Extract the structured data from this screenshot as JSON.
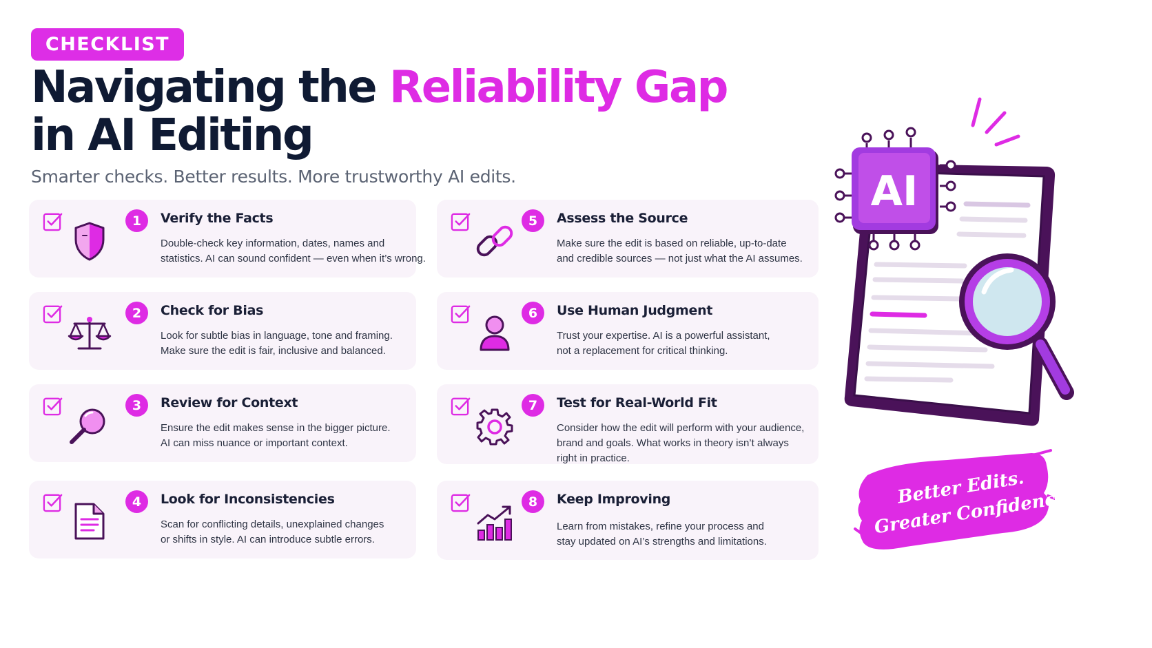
{
  "header": {
    "badge": "CHECKLIST",
    "title_part1": "Navigating the ",
    "title_highlight": "Reliability Gap",
    "title_line2": "in AI Editing",
    "subtitle": "Smarter checks. Better results. More trustworthy AI edits."
  },
  "items": [
    {
      "number": "1",
      "title": "Verify the Facts",
      "icon": "shield-icon",
      "desc_line1": "Double-check key information, dates, names and",
      "desc_line2": "statistics. AI can sound confident — even when it’s wrong.",
      "desc_line3": ""
    },
    {
      "number": "2",
      "title": "Check for Bias",
      "icon": "scale-icon",
      "desc_line1": "Look for subtle bias in language, tone and framing.",
      "desc_line2": "Make sure the edit is fair, inclusive and balanced.",
      "desc_line3": ""
    },
    {
      "number": "3",
      "title": "Review for Context",
      "icon": "magnifier-icon",
      "desc_line1": "Ensure the edit makes sense in the bigger picture.",
      "desc_line2": "AI can miss nuance or important context.",
      "desc_line3": ""
    },
    {
      "number": "4",
      "title": "Look for Inconsistencies",
      "icon": "document-icon",
      "desc_line1": "Scan for conflicting details, unexplained changes",
      "desc_line2": "or shifts in style. AI can introduce subtle errors.",
      "desc_line3": ""
    },
    {
      "number": "5",
      "title": "Assess the Source",
      "icon": "link-icon",
      "desc_line1": "Make sure the edit is based on reliable, up-to-date",
      "desc_line2": "and credible sources — not just what the AI assumes.",
      "desc_line3": ""
    },
    {
      "number": "6",
      "title": "Use Human Judgment",
      "icon": "person-icon",
      "desc_line1": "Trust your expertise. AI is a powerful assistant,",
      "desc_line2": "not a replacement for critical thinking.",
      "desc_line3": ""
    },
    {
      "number": "7",
      "title": "Test for Real-World Fit",
      "icon": "gear-icon",
      "desc_line1": "Consider how the edit will perform with your audience,",
      "desc_line2": "brand and goals. What works in theory isn’t always",
      "desc_line3": "right in practice."
    },
    {
      "number": "8",
      "title": "Keep Improving",
      "icon": "growth-chart-icon",
      "desc_line1": "Learn from mistakes, refine your process and",
      "desc_line2": "stay updated on AI’s strengths and limitations.",
      "desc_line3": ""
    }
  ],
  "illustration": {
    "chip_label": "AI",
    "stamp_line1": "Better Edits.",
    "stamp_line2": "Greater Confidence."
  },
  "colors": {
    "accent": "#de2be4",
    "purple": "#8a2bd6",
    "dark_purple": "#4a1259",
    "title": "#0f1a33",
    "card_bg": "#f9f3fa"
  }
}
